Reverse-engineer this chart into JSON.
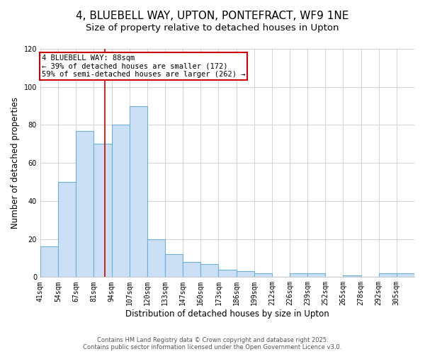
{
  "title": "4, BLUEBELL WAY, UPTON, PONTEFRACT, WF9 1NE",
  "subtitle": "Size of property relative to detached houses in Upton",
  "xlabel": "Distribution of detached houses by size in Upton",
  "ylabel": "Number of detached properties",
  "bar_labels": [
    "41sqm",
    "54sqm",
    "67sqm",
    "81sqm",
    "94sqm",
    "107sqm",
    "120sqm",
    "133sqm",
    "147sqm",
    "160sqm",
    "173sqm",
    "186sqm",
    "199sqm",
    "212sqm",
    "226sqm",
    "239sqm",
    "252sqm",
    "265sqm",
    "278sqm",
    "292sqm",
    "305sqm"
  ],
  "bar_values": [
    16,
    50,
    77,
    70,
    80,
    90,
    20,
    12,
    8,
    7,
    4,
    3,
    2,
    0,
    2,
    2,
    0,
    1,
    0,
    2,
    2
  ],
  "bar_color": "#cce0f5",
  "bar_edge_color": "#6baed6",
  "property_sqm": 88,
  "annotation_title": "4 BLUEBELL WAY: 88sqm",
  "annotation_line1": "← 39% of detached houses are smaller (172)",
  "annotation_line2": "59% of semi-detached houses are larger (262) →",
  "annotation_box_color": "#ffffff",
  "annotation_box_edge": "#cc0000",
  "ylim": [
    0,
    120
  ],
  "footer1": "Contains HM Land Registry data © Crown copyright and database right 2025.",
  "footer2": "Contains public sector information licensed under the Open Government Licence v3.0.",
  "background_color": "#ffffff",
  "grid_color": "#cccccc",
  "title_fontsize": 11,
  "subtitle_fontsize": 9.5,
  "axis_label_fontsize": 8.5,
  "tick_fontsize": 7,
  "annotation_fontsize": 7.5,
  "footer_fontsize": 6,
  "bin_width": 13
}
